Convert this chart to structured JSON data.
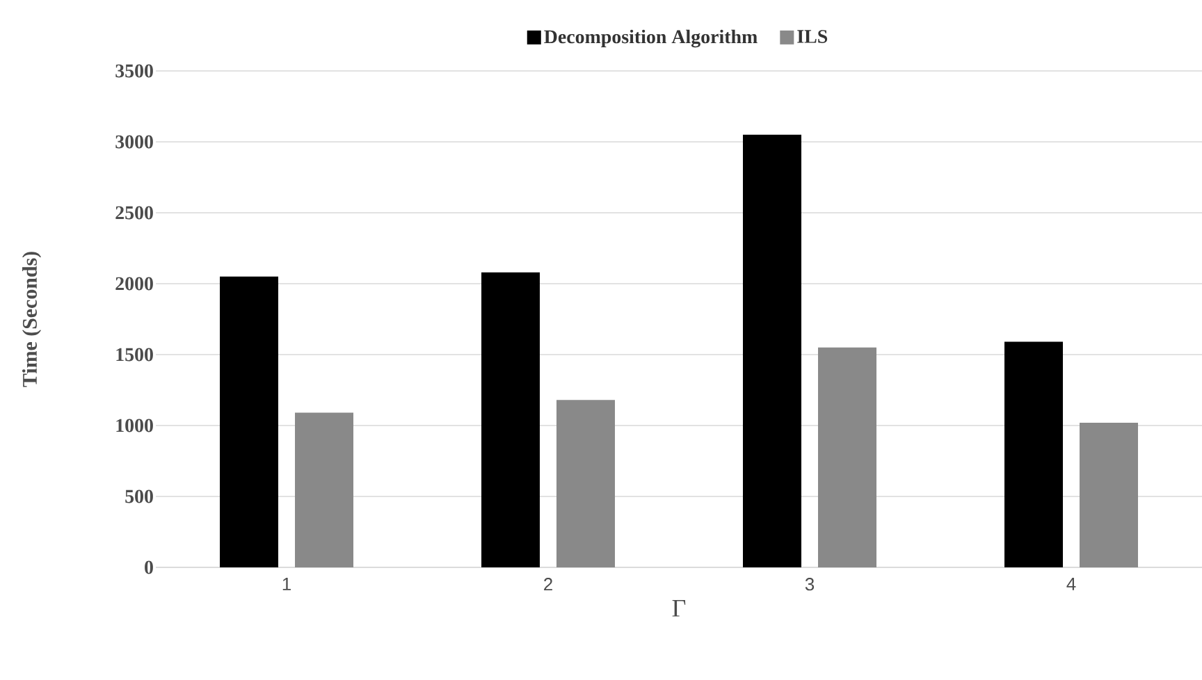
{
  "chart_data": {
    "type": "bar",
    "xlabel": "Γ",
    "ylabel": "Time (Seconds)",
    "categories": [
      "1",
      "2",
      "3",
      "4"
    ],
    "series": [
      {
        "name": "Decomposition Algorithm",
        "color": "#000000",
        "values": [
          2050,
          2080,
          3050,
          1590
        ]
      },
      {
        "name": "ILS",
        "color": "#898989",
        "values": [
          1090,
          1180,
          1550,
          1020
        ]
      }
    ],
    "ylim": [
      0,
      3500
    ],
    "yticks": [
      0,
      500,
      1000,
      1500,
      2000,
      2500,
      3000,
      3500
    ],
    "grid": "y",
    "legend": "top"
  }
}
